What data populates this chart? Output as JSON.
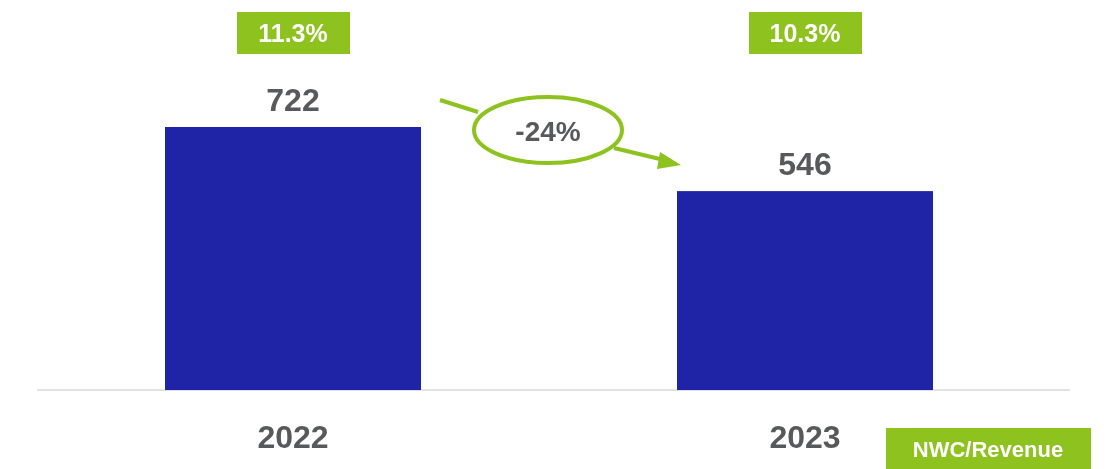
{
  "chart_data": {
    "type": "bar",
    "categories": [
      "2022",
      "2023"
    ],
    "values": [
      722,
      546
    ],
    "color": "#1f23a6",
    "data_labels": true,
    "annotations": [
      "11.3%",
      "10.3%",
      "-24%",
      "NWC/Revenue"
    ]
  }
}
